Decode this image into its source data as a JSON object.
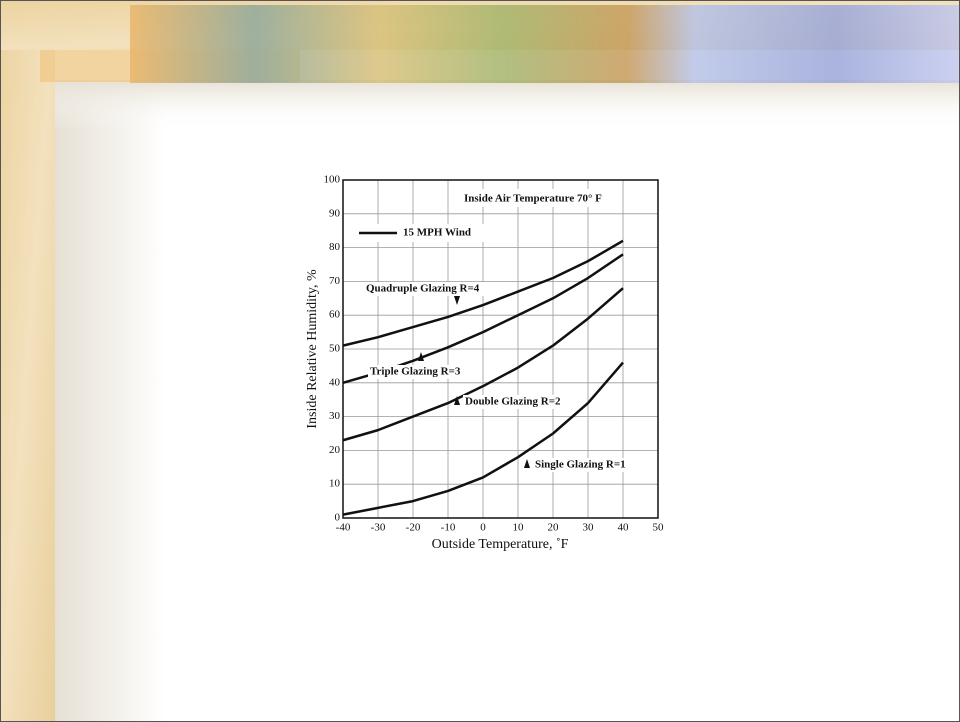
{
  "chart_data": {
    "type": "line",
    "title": "Inside Air Temperature 70° F",
    "legend_label": "15 MPH Wind",
    "x_label": "Outside Temperature, ˚F",
    "y_label": "Inside Relative Humidity, %",
    "x": [
      -40,
      -30,
      -20,
      -10,
      0,
      10,
      20,
      30,
      40
    ],
    "series": [
      {
        "name": "Quadruple Glazing R=4",
        "color": "#111111",
        "values": [
          51,
          53.5,
          56.5,
          59.5,
          63,
          67,
          71,
          76,
          82
        ]
      },
      {
        "name": "Triple Glazing R=3",
        "color": "#111111",
        "values": [
          40,
          43,
          46.5,
          50.5,
          55,
          60,
          65,
          71,
          78
        ]
      },
      {
        "name": "Double Glazing R=2",
        "color": "#111111",
        "values": [
          23,
          26,
          30,
          34,
          39,
          44.5,
          51,
          59,
          68
        ]
      },
      {
        "name": "Single Glazing R=1",
        "color": "#111111",
        "values": [
          1,
          3,
          5,
          8,
          12,
          18,
          25,
          34,
          46
        ]
      }
    ],
    "xlim": [
      -40,
      50
    ],
    "xticks": [
      -40,
      -30,
      -20,
      -10,
      0,
      10,
      20,
      30,
      40,
      50
    ],
    "ylim": [
      0,
      100
    ],
    "yticks": [
      0,
      10,
      20,
      30,
      40,
      50,
      60,
      70,
      80,
      90,
      100
    ],
    "grid": true
  }
}
